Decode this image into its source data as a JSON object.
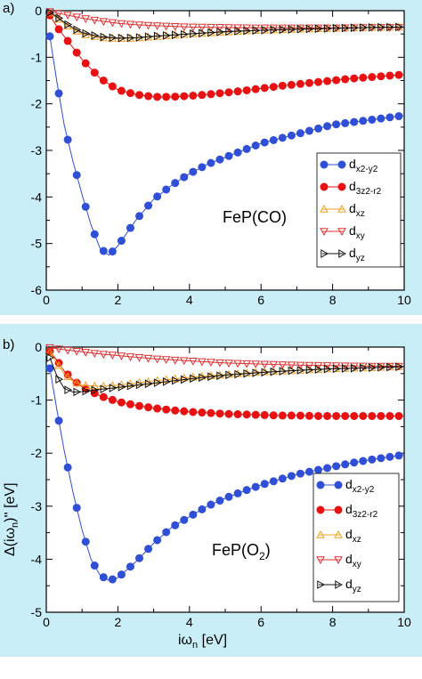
{
  "chart_data": [
    {
      "type": "line",
      "panel_label": "a)",
      "annotation": "FeP(CO)",
      "xlabel": "",
      "ylabel": "",
      "xlim": [
        0,
        10
      ],
      "ylim": [
        -6,
        0
      ],
      "xticks": [
        "0",
        "2",
        "4",
        "6",
        "8",
        "10"
      ],
      "yticks": [
        "0",
        "-1",
        "-2",
        "-3",
        "-4",
        "-5",
        "-6"
      ],
      "legend_position": "right",
      "series": [
        {
          "name": "d_x2-y2",
          "legend_main": "d",
          "legend_sub": "x2-y2",
          "color": "#2f4fd6",
          "marker": "circle",
          "x": [
            0.1,
            0.3,
            0.5,
            0.75,
            1.0,
            1.25,
            1.5,
            1.75,
            2.0,
            2.5,
            3.0,
            3.5,
            4.0,
            4.5,
            5.0,
            5.5,
            6.0,
            6.5,
            7.0,
            7.5,
            8.0,
            8.5,
            9.0,
            9.5,
            10.0
          ],
          "y": [
            -0.55,
            -1.55,
            -2.45,
            -3.25,
            -3.95,
            -4.6,
            -5.1,
            -5.25,
            -5.05,
            -4.5,
            -4.05,
            -3.75,
            -3.5,
            -3.3,
            -3.15,
            -3.0,
            -2.85,
            -2.75,
            -2.65,
            -2.55,
            -2.45,
            -2.4,
            -2.35,
            -2.3,
            -2.25
          ]
        },
        {
          "name": "d_3z2-r2",
          "legend_main": "d",
          "legend_sub": "3z2-r2",
          "color": "#e81010",
          "marker": "circle",
          "x": [
            0.1,
            0.3,
            0.5,
            0.75,
            1.0,
            1.5,
            2.0,
            2.5,
            3.0,
            3.5,
            4.0,
            4.5,
            5.0,
            5.5,
            6.0,
            6.5,
            7.0,
            7.5,
            8.0,
            8.5,
            9.0,
            9.5,
            10.0
          ],
          "y": [
            -0.1,
            -0.35,
            -0.55,
            -0.8,
            -1.05,
            -1.45,
            -1.7,
            -1.8,
            -1.85,
            -1.85,
            -1.83,
            -1.8,
            -1.76,
            -1.72,
            -1.67,
            -1.62,
            -1.58,
            -1.54,
            -1.5,
            -1.46,
            -1.43,
            -1.4,
            -1.37
          ]
        },
        {
          "name": "d_xz",
          "legend_main": "d",
          "legend_sub": "xz",
          "color": "#f0a020",
          "marker": "triangle-up",
          "x": [
            0.1,
            0.3,
            0.5,
            0.75,
            1.0,
            1.5,
            2.0,
            2.5,
            3.0,
            4.0,
            5.0,
            6.0,
            7.0,
            8.0,
            9.0,
            10.0
          ],
          "y": [
            -0.05,
            -0.15,
            -0.28,
            -0.4,
            -0.5,
            -0.58,
            -0.6,
            -0.59,
            -0.56,
            -0.5,
            -0.46,
            -0.42,
            -0.4,
            -0.38,
            -0.36,
            -0.35
          ]
        },
        {
          "name": "d_xy",
          "legend_main": "d",
          "legend_sub": "xy",
          "color": "#e03030",
          "marker": "triangle-down",
          "x": [
            0.1,
            0.3,
            0.5,
            0.75,
            1.0,
            1.5,
            2.0,
            2.5,
            3.0,
            4.0,
            5.0,
            6.0,
            7.0,
            8.0,
            9.0,
            10.0
          ],
          "y": [
            -0.02,
            -0.05,
            -0.08,
            -0.12,
            -0.16,
            -0.22,
            -0.27,
            -0.3,
            -0.32,
            -0.35,
            -0.36,
            -0.37,
            -0.37,
            -0.37,
            -0.36,
            -0.36
          ]
        },
        {
          "name": "d_yz",
          "legend_main": "d",
          "legend_sub": "yz",
          "color": "#111111",
          "marker": "triangle-right",
          "x": [
            0.1,
            0.3,
            0.5,
            0.75,
            1.0,
            1.5,
            2.0,
            2.5,
            3.0,
            4.0,
            5.0,
            6.0,
            7.0,
            8.0,
            9.0,
            10.0
          ],
          "y": [
            -0.04,
            -0.13,
            -0.25,
            -0.37,
            -0.47,
            -0.56,
            -0.59,
            -0.58,
            -0.55,
            -0.5,
            -0.45,
            -0.42,
            -0.4,
            -0.38,
            -0.36,
            -0.35
          ]
        }
      ]
    },
    {
      "type": "line",
      "panel_label": "b)",
      "annotation_main": "FeP(O",
      "annotation_sub": "2",
      "annotation_tail": ")",
      "xlabel_main": "iω",
      "xlabel_sub": "n",
      "xlabel_tail": " [eV]",
      "ylabel_main": "Δ(iω",
      "ylabel_sub": "n",
      "ylabel_tail": ")'' [eV]",
      "xlim": [
        0,
        10
      ],
      "ylim": [
        -5,
        0
      ],
      "xticks": [
        "0",
        "2",
        "4",
        "6",
        "8",
        "10"
      ],
      "yticks": [
        "0",
        "-1",
        "-2",
        "-3",
        "-4",
        "-5"
      ],
      "legend_position": "right",
      "series": [
        {
          "name": "d_x2-y2",
          "legend_main": "d",
          "legend_sub": "x2-y2",
          "color": "#2f4fd6",
          "marker": "circle",
          "x": [
            0.1,
            0.3,
            0.5,
            0.75,
            1.0,
            1.25,
            1.5,
            1.75,
            2.0,
            2.5,
            3.0,
            3.5,
            4.0,
            4.5,
            5.0,
            5.5,
            6.0,
            6.5,
            7.0,
            7.5,
            8.0,
            8.5,
            9.0,
            9.5,
            10.0
          ],
          "y": [
            -0.4,
            -1.2,
            -1.95,
            -2.75,
            -3.45,
            -4.0,
            -4.3,
            -4.4,
            -4.35,
            -4.05,
            -3.7,
            -3.4,
            -3.2,
            -3.0,
            -2.85,
            -2.72,
            -2.6,
            -2.5,
            -2.4,
            -2.33,
            -2.26,
            -2.19,
            -2.13,
            -2.08,
            -2.03
          ]
        },
        {
          "name": "d_3z2-r2",
          "legend_main": "d",
          "legend_sub": "3z2-r2",
          "color": "#e81010",
          "marker": "circle",
          "x": [
            0.1,
            0.3,
            0.5,
            0.75,
            1.0,
            1.5,
            2.0,
            2.5,
            3.0,
            3.5,
            4.0,
            4.5,
            5.0,
            5.5,
            6.0,
            6.5,
            7.0,
            7.5,
            8.0,
            8.5,
            9.0,
            9.5,
            10.0
          ],
          "y": [
            -0.08,
            -0.25,
            -0.45,
            -0.62,
            -0.75,
            -0.92,
            -1.03,
            -1.1,
            -1.15,
            -1.19,
            -1.22,
            -1.24,
            -1.26,
            -1.27,
            -1.28,
            -1.29,
            -1.29,
            -1.3,
            -1.3,
            -1.3,
            -1.3,
            -1.3,
            -1.3
          ]
        },
        {
          "name": "d_xz",
          "legend_main": "d",
          "legend_sub": "xz",
          "color": "#f0a020",
          "marker": "triangle-up",
          "x": [
            0.1,
            0.3,
            0.5,
            0.75,
            1.0,
            1.5,
            2.0,
            2.5,
            3.0,
            4.0,
            5.0,
            6.0,
            7.0,
            8.0,
            9.0,
            10.0
          ],
          "y": [
            -0.1,
            -0.3,
            -0.5,
            -0.65,
            -0.72,
            -0.74,
            -0.72,
            -0.68,
            -0.64,
            -0.57,
            -0.52,
            -0.47,
            -0.44,
            -0.41,
            -0.39,
            -0.37
          ]
        },
        {
          "name": "d_xy",
          "legend_main": "d",
          "legend_sub": "xy",
          "color": "#e03030",
          "marker": "triangle-down",
          "x": [
            0.1,
            0.3,
            0.5,
            0.75,
            1.0,
            1.5,
            2.0,
            2.5,
            3.0,
            4.0,
            5.0,
            6.0,
            7.0,
            8.0,
            9.0,
            10.0
          ],
          "y": [
            -0.01,
            -0.03,
            -0.05,
            -0.07,
            -0.09,
            -0.13,
            -0.16,
            -0.19,
            -0.22,
            -0.26,
            -0.3,
            -0.32,
            -0.34,
            -0.35,
            -0.36,
            -0.36
          ]
        },
        {
          "name": "d_yz",
          "legend_main": "d",
          "legend_sub": "yz",
          "color": "#111111",
          "marker": "triangle-right",
          "x": [
            0.1,
            0.3,
            0.5,
            0.75,
            1.0,
            1.5,
            2.0,
            2.5,
            3.0,
            4.0,
            5.0,
            6.0,
            7.0,
            8.0,
            9.0,
            10.0
          ],
          "y": [
            -0.2,
            -0.55,
            -0.78,
            -0.85,
            -0.84,
            -0.8,
            -0.76,
            -0.72,
            -0.68,
            -0.6,
            -0.53,
            -0.48,
            -0.44,
            -0.41,
            -0.39,
            -0.37
          ]
        }
      ]
    }
  ]
}
